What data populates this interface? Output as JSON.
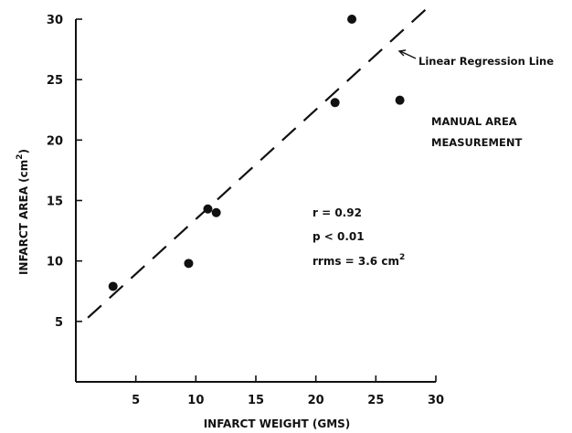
{
  "chart_data": {
    "type": "scatter",
    "xlabel": "INFARCT WEIGHT (GMS)",
    "ylabel": "INFARCT AREA (cm²)",
    "ylabel_base": "INFARCT AREA (cm",
    "ylabel_sup": "2",
    "ylabel_end": ")",
    "xlim": [
      0,
      30
    ],
    "ylim": [
      0,
      30
    ],
    "xticks": [
      5,
      10,
      15,
      20,
      25,
      30
    ],
    "yticks": [
      5,
      10,
      15,
      20,
      25,
      30
    ],
    "points": [
      {
        "x": 3.1,
        "y": 7.9
      },
      {
        "x": 9.4,
        "y": 9.8
      },
      {
        "x": 11.0,
        "y": 14.3
      },
      {
        "x": 11.7,
        "y": 14.0
      },
      {
        "x": 21.6,
        "y": 23.1
      },
      {
        "x": 23.0,
        "y": 30.0
      },
      {
        "x": 27.0,
        "y": 23.3
      }
    ],
    "regression_line": {
      "x": [
        1,
        29.7
      ],
      "y": [
        5.3,
        31.3
      ]
    },
    "annotations": {
      "regression_label": "Linear Regression Line",
      "method_line1": "MANUAL AREA",
      "method_line2": "MEASUREMENT",
      "r": "r = 0.92",
      "p": "p < 0.01",
      "rrms": "rrms = 3.6 cm",
      "rrms_sup": "2"
    },
    "grid": false
  }
}
